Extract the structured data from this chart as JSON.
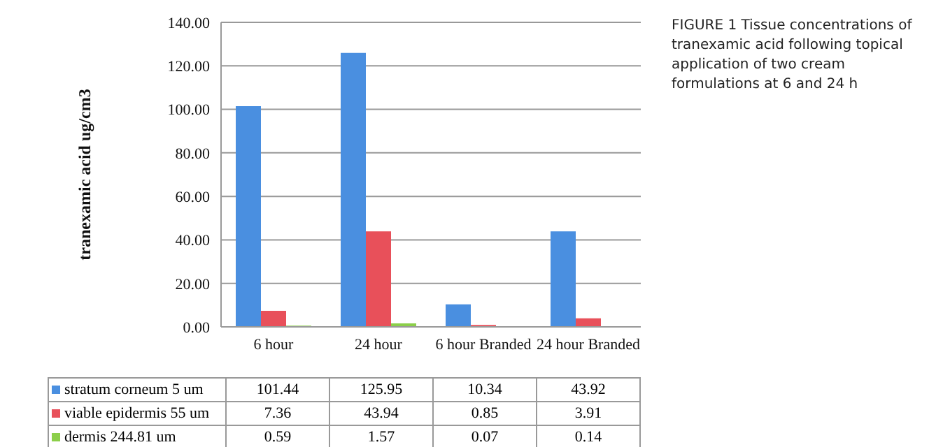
{
  "chart_data": {
    "type": "bar",
    "title": "FIGURE 1 Tissue concentrations of tranexamic acid following topical application of two cream formulations at 6 and 24 h",
    "ylabel": "tranexamic acid ug/cm3",
    "categories": [
      "6 hour",
      "24 hour",
      "6 hour Branded",
      "24 hour Branded"
    ],
    "series": [
      {
        "name": "stratum corneum 5 um",
        "color": "#4a8fe0",
        "values": [
          101.44,
          125.95,
          10.34,
          43.92
        ]
      },
      {
        "name": "viable epidermis 55 um",
        "color": "#e8505a",
        "values": [
          7.36,
          43.94,
          0.85,
          3.91
        ]
      },
      {
        "name": "dermis 244.81 um",
        "color": "#8ccf4a",
        "values": [
          0.59,
          1.57,
          0.07,
          0.14
        ]
      }
    ],
    "ylim": [
      0,
      140
    ],
    "yticks": [
      {
        "value": 0,
        "label": "0.00"
      },
      {
        "value": 20,
        "label": "20.00"
      },
      {
        "value": 40,
        "label": "40.00"
      },
      {
        "value": 60,
        "label": "60.00"
      },
      {
        "value": 80,
        "label": "80.00"
      },
      {
        "value": 100,
        "label": "100.00"
      },
      {
        "value": 120,
        "label": "120.00"
      },
      {
        "value": 140,
        "label": "140.00"
      }
    ],
    "grid": "y",
    "legend": "bottom",
    "data_labels": true
  }
}
